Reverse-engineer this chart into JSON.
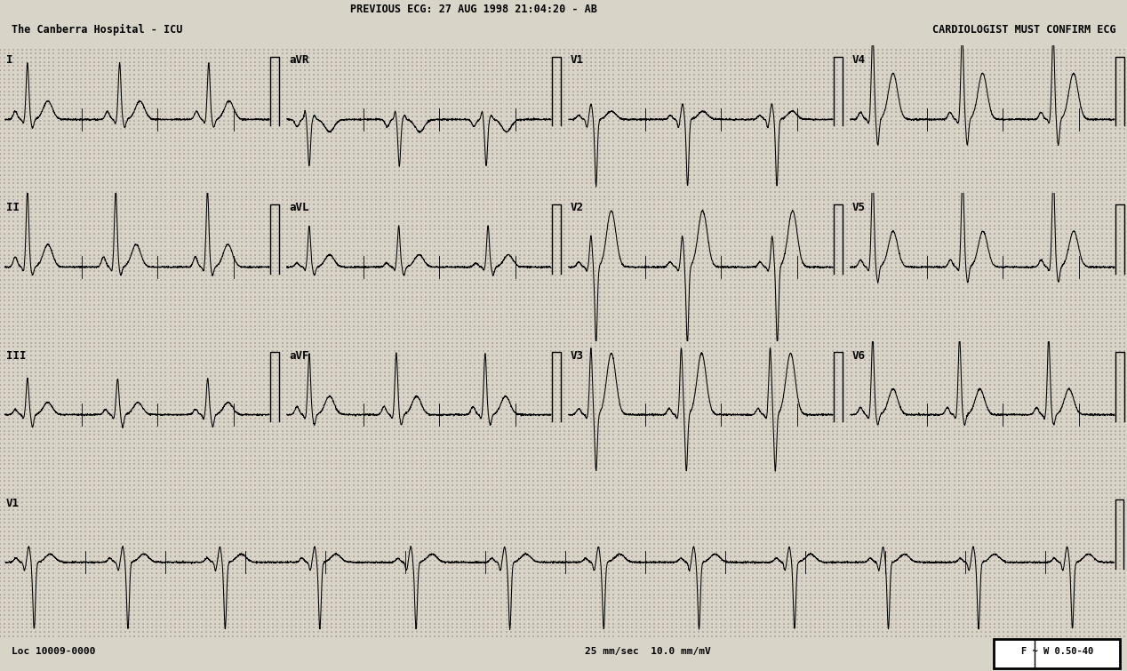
{
  "bg_color": "#d8d4c8",
  "minor_dot_color": "#b8aca4",
  "major_dot_color": "#a09088",
  "line_color": "#000000",
  "header_line1": "PREVIOUS ECG: 27 AUG 1998 21:04:20 - AB",
  "header_line2": "The Canberra Hospital - ICU",
  "header_right": "CARDIOLOGIST MUST CONFIRM ECG",
  "footer_left": "Loc 10009-0000",
  "footer_center": "25 mm/sec  10.0 mm/mV",
  "footer_right": "F ~ W 0.50-40",
  "paper_color": "#d8d4c8",
  "leads_row0": [
    "I",
    "aVR",
    "V1",
    "V4"
  ],
  "leads_row1": [
    "II",
    "aVL",
    "V2",
    "V5"
  ],
  "leads_row2": [
    "III",
    "aVF",
    "V3",
    "V6"
  ],
  "leads_row3": "V1",
  "morphologies": {
    "I": {
      "P": 0.08,
      "Q": -0.04,
      "R": 0.55,
      "S": -0.08,
      "T": 0.18,
      "baseline": 0.0
    },
    "II": {
      "P": 0.1,
      "Q": -0.04,
      "R": 0.75,
      "S": -0.08,
      "T": 0.22,
      "baseline": 0.0
    },
    "III": {
      "P": 0.05,
      "Q": -0.04,
      "R": 0.35,
      "S": -0.12,
      "T": 0.12,
      "baseline": 0.0
    },
    "aVR": {
      "P": -0.07,
      "Q": 0.08,
      "R": -0.45,
      "S": 0.04,
      "T": -0.12,
      "baseline": 0.0
    },
    "aVL": {
      "P": 0.04,
      "Q": -0.03,
      "R": 0.4,
      "S": -0.08,
      "T": 0.12,
      "baseline": 0.0
    },
    "aVF": {
      "P": 0.08,
      "Q": -0.04,
      "R": 0.6,
      "S": -0.1,
      "T": 0.18,
      "baseline": 0.0
    },
    "V1": {
      "P": 0.04,
      "Q": -0.08,
      "R": 0.15,
      "S": -0.65,
      "T": 0.08,
      "baseline": 0.0
    },
    "V2": {
      "P": 0.05,
      "Q": -0.04,
      "R": 0.3,
      "S": -0.75,
      "T": 0.55,
      "baseline": 0.0
    },
    "V3": {
      "P": 0.06,
      "Q": -0.04,
      "R": 0.65,
      "S": -0.55,
      "T": 0.6,
      "baseline": 0.0
    },
    "V4": {
      "P": 0.07,
      "Q": -0.04,
      "R": 0.85,
      "S": -0.25,
      "T": 0.45,
      "baseline": 0.0
    },
    "V5": {
      "P": 0.07,
      "Q": -0.04,
      "R": 0.9,
      "S": -0.15,
      "T": 0.35,
      "baseline": 0.0
    },
    "V6": {
      "P": 0.07,
      "Q": -0.04,
      "R": 0.75,
      "S": -0.1,
      "T": 0.25,
      "baseline": 0.0
    }
  },
  "heart_rate": 68,
  "fs": 500,
  "strip_duration": 2.6,
  "long_duration": 10.4
}
